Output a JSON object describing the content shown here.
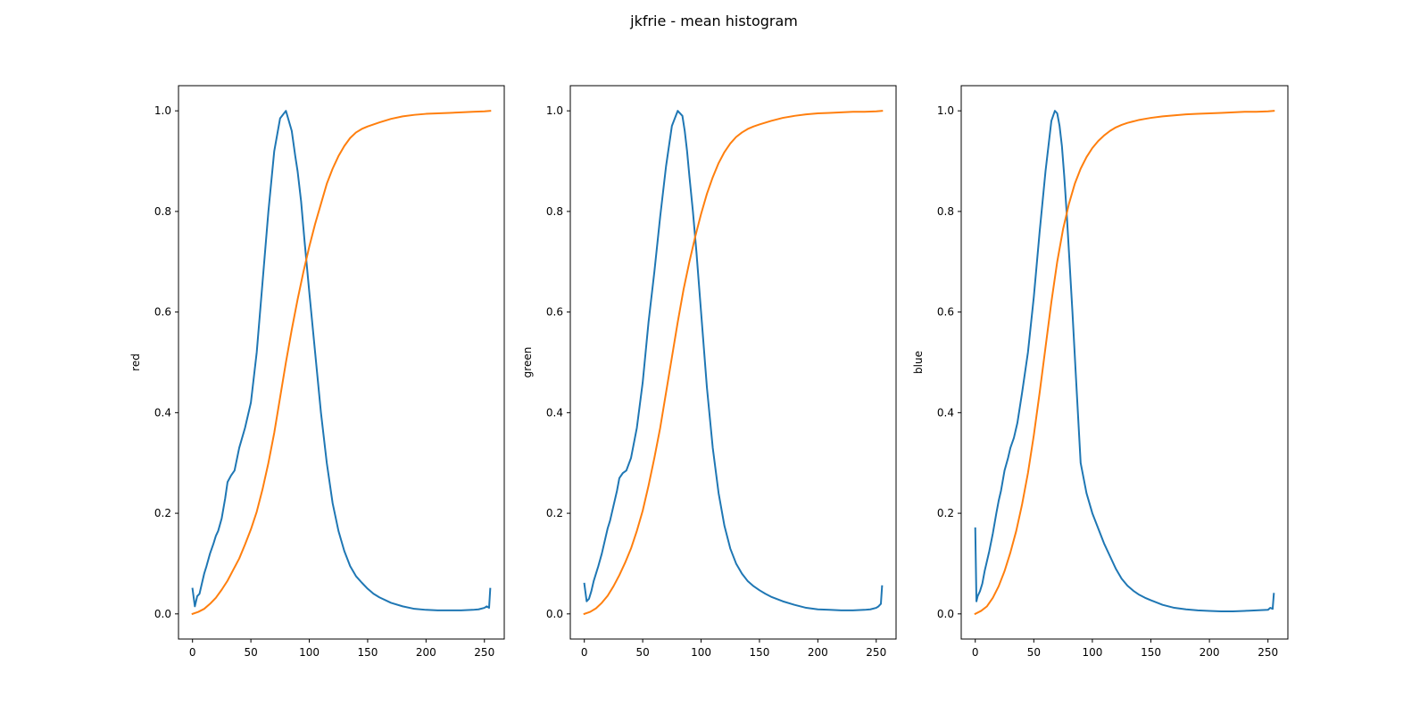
{
  "figure": {
    "title": "jkfrie - mean histogram"
  },
  "colors": {
    "histogram": "#1f77b4",
    "cumulative": "#ff7f0e"
  },
  "chart_data": [
    {
      "type": "line",
      "title": "",
      "xlabel": "",
      "ylabel": "red",
      "xlim": [
        -12,
        267
      ],
      "ylim": [
        -0.05,
        1.05
      ],
      "xticks": [
        "0",
        "50",
        "100",
        "150",
        "200",
        "250"
      ],
      "xtick_values": [
        0,
        50,
        100,
        150,
        200,
        250
      ],
      "yticks": [
        "0.0",
        "0.2",
        "0.4",
        "0.6",
        "0.8",
        "1.0"
      ],
      "ytick_values": [
        0,
        0.2,
        0.4,
        0.6,
        0.8,
        1.0
      ],
      "grid": false,
      "series": [
        {
          "kind": "histogram",
          "x": [
            0,
            2,
            4,
            6,
            8,
            10,
            12,
            15,
            18,
            20,
            22,
            25,
            28,
            30,
            33,
            36,
            40,
            45,
            50,
            55,
            60,
            65,
            70,
            75,
            80,
            85,
            88,
            90,
            93,
            96,
            100,
            105,
            110,
            115,
            120,
            125,
            130,
            135,
            140,
            145,
            150,
            155,
            160,
            170,
            180,
            190,
            200,
            210,
            220,
            230,
            240,
            245,
            250,
            252,
            254,
            255
          ],
          "y": [
            0.05,
            0.015,
            0.035,
            0.04,
            0.06,
            0.08,
            0.095,
            0.12,
            0.14,
            0.155,
            0.165,
            0.19,
            0.23,
            0.262,
            0.275,
            0.285,
            0.33,
            0.37,
            0.42,
            0.52,
            0.66,
            0.8,
            0.92,
            0.985,
            1.0,
            0.96,
            0.91,
            0.88,
            0.82,
            0.74,
            0.64,
            0.52,
            0.4,
            0.3,
            0.22,
            0.165,
            0.125,
            0.095,
            0.075,
            0.062,
            0.05,
            0.04,
            0.033,
            0.022,
            0.015,
            0.01,
            0.008,
            0.007,
            0.007,
            0.007,
            0.008,
            0.009,
            0.012,
            0.015,
            0.012,
            0.05
          ]
        },
        {
          "kind": "cumulative",
          "x": [
            0,
            5,
            10,
            15,
            20,
            25,
            30,
            35,
            40,
            45,
            50,
            55,
            60,
            65,
            70,
            75,
            80,
            85,
            90,
            95,
            100,
            105,
            110,
            115,
            120,
            125,
            130,
            135,
            140,
            145,
            150,
            160,
            170,
            180,
            190,
            200,
            210,
            220,
            230,
            240,
            250,
            255
          ],
          "y": [
            0.0,
            0.004,
            0.01,
            0.02,
            0.032,
            0.048,
            0.066,
            0.088,
            0.11,
            0.138,
            0.168,
            0.203,
            0.248,
            0.3,
            0.36,
            0.43,
            0.5,
            0.565,
            0.625,
            0.68,
            0.73,
            0.775,
            0.815,
            0.855,
            0.885,
            0.91,
            0.93,
            0.946,
            0.957,
            0.964,
            0.969,
            0.977,
            0.984,
            0.989,
            0.992,
            0.994,
            0.995,
            0.996,
            0.997,
            0.998,
            0.999,
            1.0
          ]
        }
      ]
    },
    {
      "type": "line",
      "title": "",
      "xlabel": "",
      "ylabel": "green",
      "xlim": [
        -12,
        267
      ],
      "ylim": [
        -0.05,
        1.05
      ],
      "xticks": [
        "0",
        "50",
        "100",
        "150",
        "200",
        "250"
      ],
      "xtick_values": [
        0,
        50,
        100,
        150,
        200,
        250
      ],
      "yticks": [
        "0.0",
        "0.2",
        "0.4",
        "0.6",
        "0.8",
        "1.0"
      ],
      "ytick_values": [
        0,
        0.2,
        0.4,
        0.6,
        0.8,
        1.0
      ],
      "grid": false,
      "series": [
        {
          "kind": "histogram",
          "x": [
            0,
            2,
            4,
            6,
            8,
            10,
            12,
            15,
            18,
            20,
            22,
            25,
            28,
            30,
            33,
            36,
            40,
            45,
            50,
            55,
            60,
            65,
            70,
            75,
            80,
            84,
            86,
            88,
            90,
            93,
            96,
            100,
            105,
            110,
            115,
            120,
            125,
            130,
            135,
            140,
            145,
            150,
            155,
            160,
            170,
            180,
            190,
            200,
            210,
            220,
            230,
            240,
            245,
            250,
            252,
            254,
            255
          ],
          "y": [
            0.06,
            0.025,
            0.03,
            0.045,
            0.065,
            0.08,
            0.095,
            0.12,
            0.15,
            0.17,
            0.185,
            0.215,
            0.245,
            0.27,
            0.28,
            0.285,
            0.31,
            0.37,
            0.46,
            0.58,
            0.68,
            0.79,
            0.89,
            0.97,
            1.0,
            0.99,
            0.96,
            0.92,
            0.87,
            0.8,
            0.72,
            0.6,
            0.45,
            0.33,
            0.24,
            0.175,
            0.13,
            0.1,
            0.08,
            0.065,
            0.055,
            0.047,
            0.04,
            0.034,
            0.025,
            0.018,
            0.012,
            0.009,
            0.008,
            0.007,
            0.007,
            0.008,
            0.009,
            0.012,
            0.015,
            0.02,
            0.055
          ]
        },
        {
          "kind": "cumulative",
          "x": [
            0,
            5,
            10,
            15,
            20,
            25,
            30,
            35,
            40,
            45,
            50,
            55,
            60,
            65,
            70,
            75,
            80,
            85,
            90,
            95,
            100,
            105,
            110,
            115,
            120,
            125,
            130,
            135,
            140,
            145,
            150,
            160,
            170,
            180,
            190,
            200,
            210,
            220,
            230,
            240,
            250,
            255
          ],
          "y": [
            0.0,
            0.004,
            0.011,
            0.022,
            0.036,
            0.055,
            0.077,
            0.102,
            0.13,
            0.165,
            0.205,
            0.255,
            0.31,
            0.37,
            0.44,
            0.51,
            0.58,
            0.645,
            0.7,
            0.75,
            0.795,
            0.835,
            0.868,
            0.896,
            0.918,
            0.935,
            0.948,
            0.957,
            0.964,
            0.969,
            0.973,
            0.98,
            0.986,
            0.99,
            0.993,
            0.995,
            0.996,
            0.997,
            0.998,
            0.998,
            0.999,
            1.0
          ]
        }
      ]
    },
    {
      "type": "line",
      "title": "",
      "xlabel": "",
      "ylabel": "blue",
      "xlim": [
        -12,
        267
      ],
      "ylim": [
        -0.05,
        1.05
      ],
      "xticks": [
        "0",
        "50",
        "100",
        "150",
        "200",
        "250"
      ],
      "xtick_values": [
        0,
        50,
        100,
        150,
        200,
        250
      ],
      "yticks": [
        "0.0",
        "0.2",
        "0.4",
        "0.6",
        "0.8",
        "1.0"
      ],
      "ytick_values": [
        0,
        0.2,
        0.4,
        0.6,
        0.8,
        1.0
      ],
      "grid": false,
      "series": [
        {
          "kind": "histogram",
          "x": [
            0,
            1,
            2,
            4,
            6,
            8,
            10,
            12,
            15,
            18,
            20,
            22,
            25,
            28,
            30,
            33,
            36,
            40,
            45,
            50,
            55,
            60,
            65,
            68,
            70,
            72,
            74,
            76,
            78,
            80,
            83,
            86,
            90,
            95,
            100,
            105,
            110,
            115,
            120,
            125,
            130,
            135,
            140,
            145,
            150,
            160,
            170,
            180,
            190,
            200,
            210,
            220,
            230,
            240,
            250,
            252,
            254,
            255
          ],
          "y": [
            0.17,
            0.025,
            0.035,
            0.045,
            0.06,
            0.085,
            0.105,
            0.125,
            0.16,
            0.2,
            0.225,
            0.245,
            0.285,
            0.31,
            0.33,
            0.35,
            0.38,
            0.44,
            0.52,
            0.63,
            0.76,
            0.88,
            0.98,
            1.0,
            0.995,
            0.97,
            0.93,
            0.87,
            0.8,
            0.72,
            0.6,
            0.47,
            0.3,
            0.24,
            0.2,
            0.17,
            0.14,
            0.115,
            0.09,
            0.07,
            0.056,
            0.046,
            0.038,
            0.032,
            0.027,
            0.018,
            0.012,
            0.009,
            0.007,
            0.006,
            0.005,
            0.005,
            0.006,
            0.007,
            0.008,
            0.012,
            0.01,
            0.04
          ]
        },
        {
          "kind": "cumulative",
          "x": [
            0,
            5,
            10,
            15,
            20,
            25,
            30,
            35,
            40,
            45,
            50,
            55,
            60,
            65,
            70,
            75,
            80,
            85,
            90,
            95,
            100,
            105,
            110,
            115,
            120,
            125,
            130,
            135,
            140,
            145,
            150,
            160,
            170,
            180,
            190,
            200,
            210,
            220,
            230,
            240,
            250,
            255
          ],
          "y": [
            0.0,
            0.006,
            0.015,
            0.032,
            0.055,
            0.085,
            0.122,
            0.165,
            0.218,
            0.28,
            0.355,
            0.44,
            0.53,
            0.62,
            0.7,
            0.765,
            0.815,
            0.855,
            0.885,
            0.908,
            0.926,
            0.94,
            0.951,
            0.96,
            0.967,
            0.972,
            0.976,
            0.979,
            0.982,
            0.984,
            0.986,
            0.989,
            0.991,
            0.993,
            0.994,
            0.995,
            0.996,
            0.997,
            0.998,
            0.998,
            0.999,
            1.0
          ]
        }
      ]
    }
  ]
}
